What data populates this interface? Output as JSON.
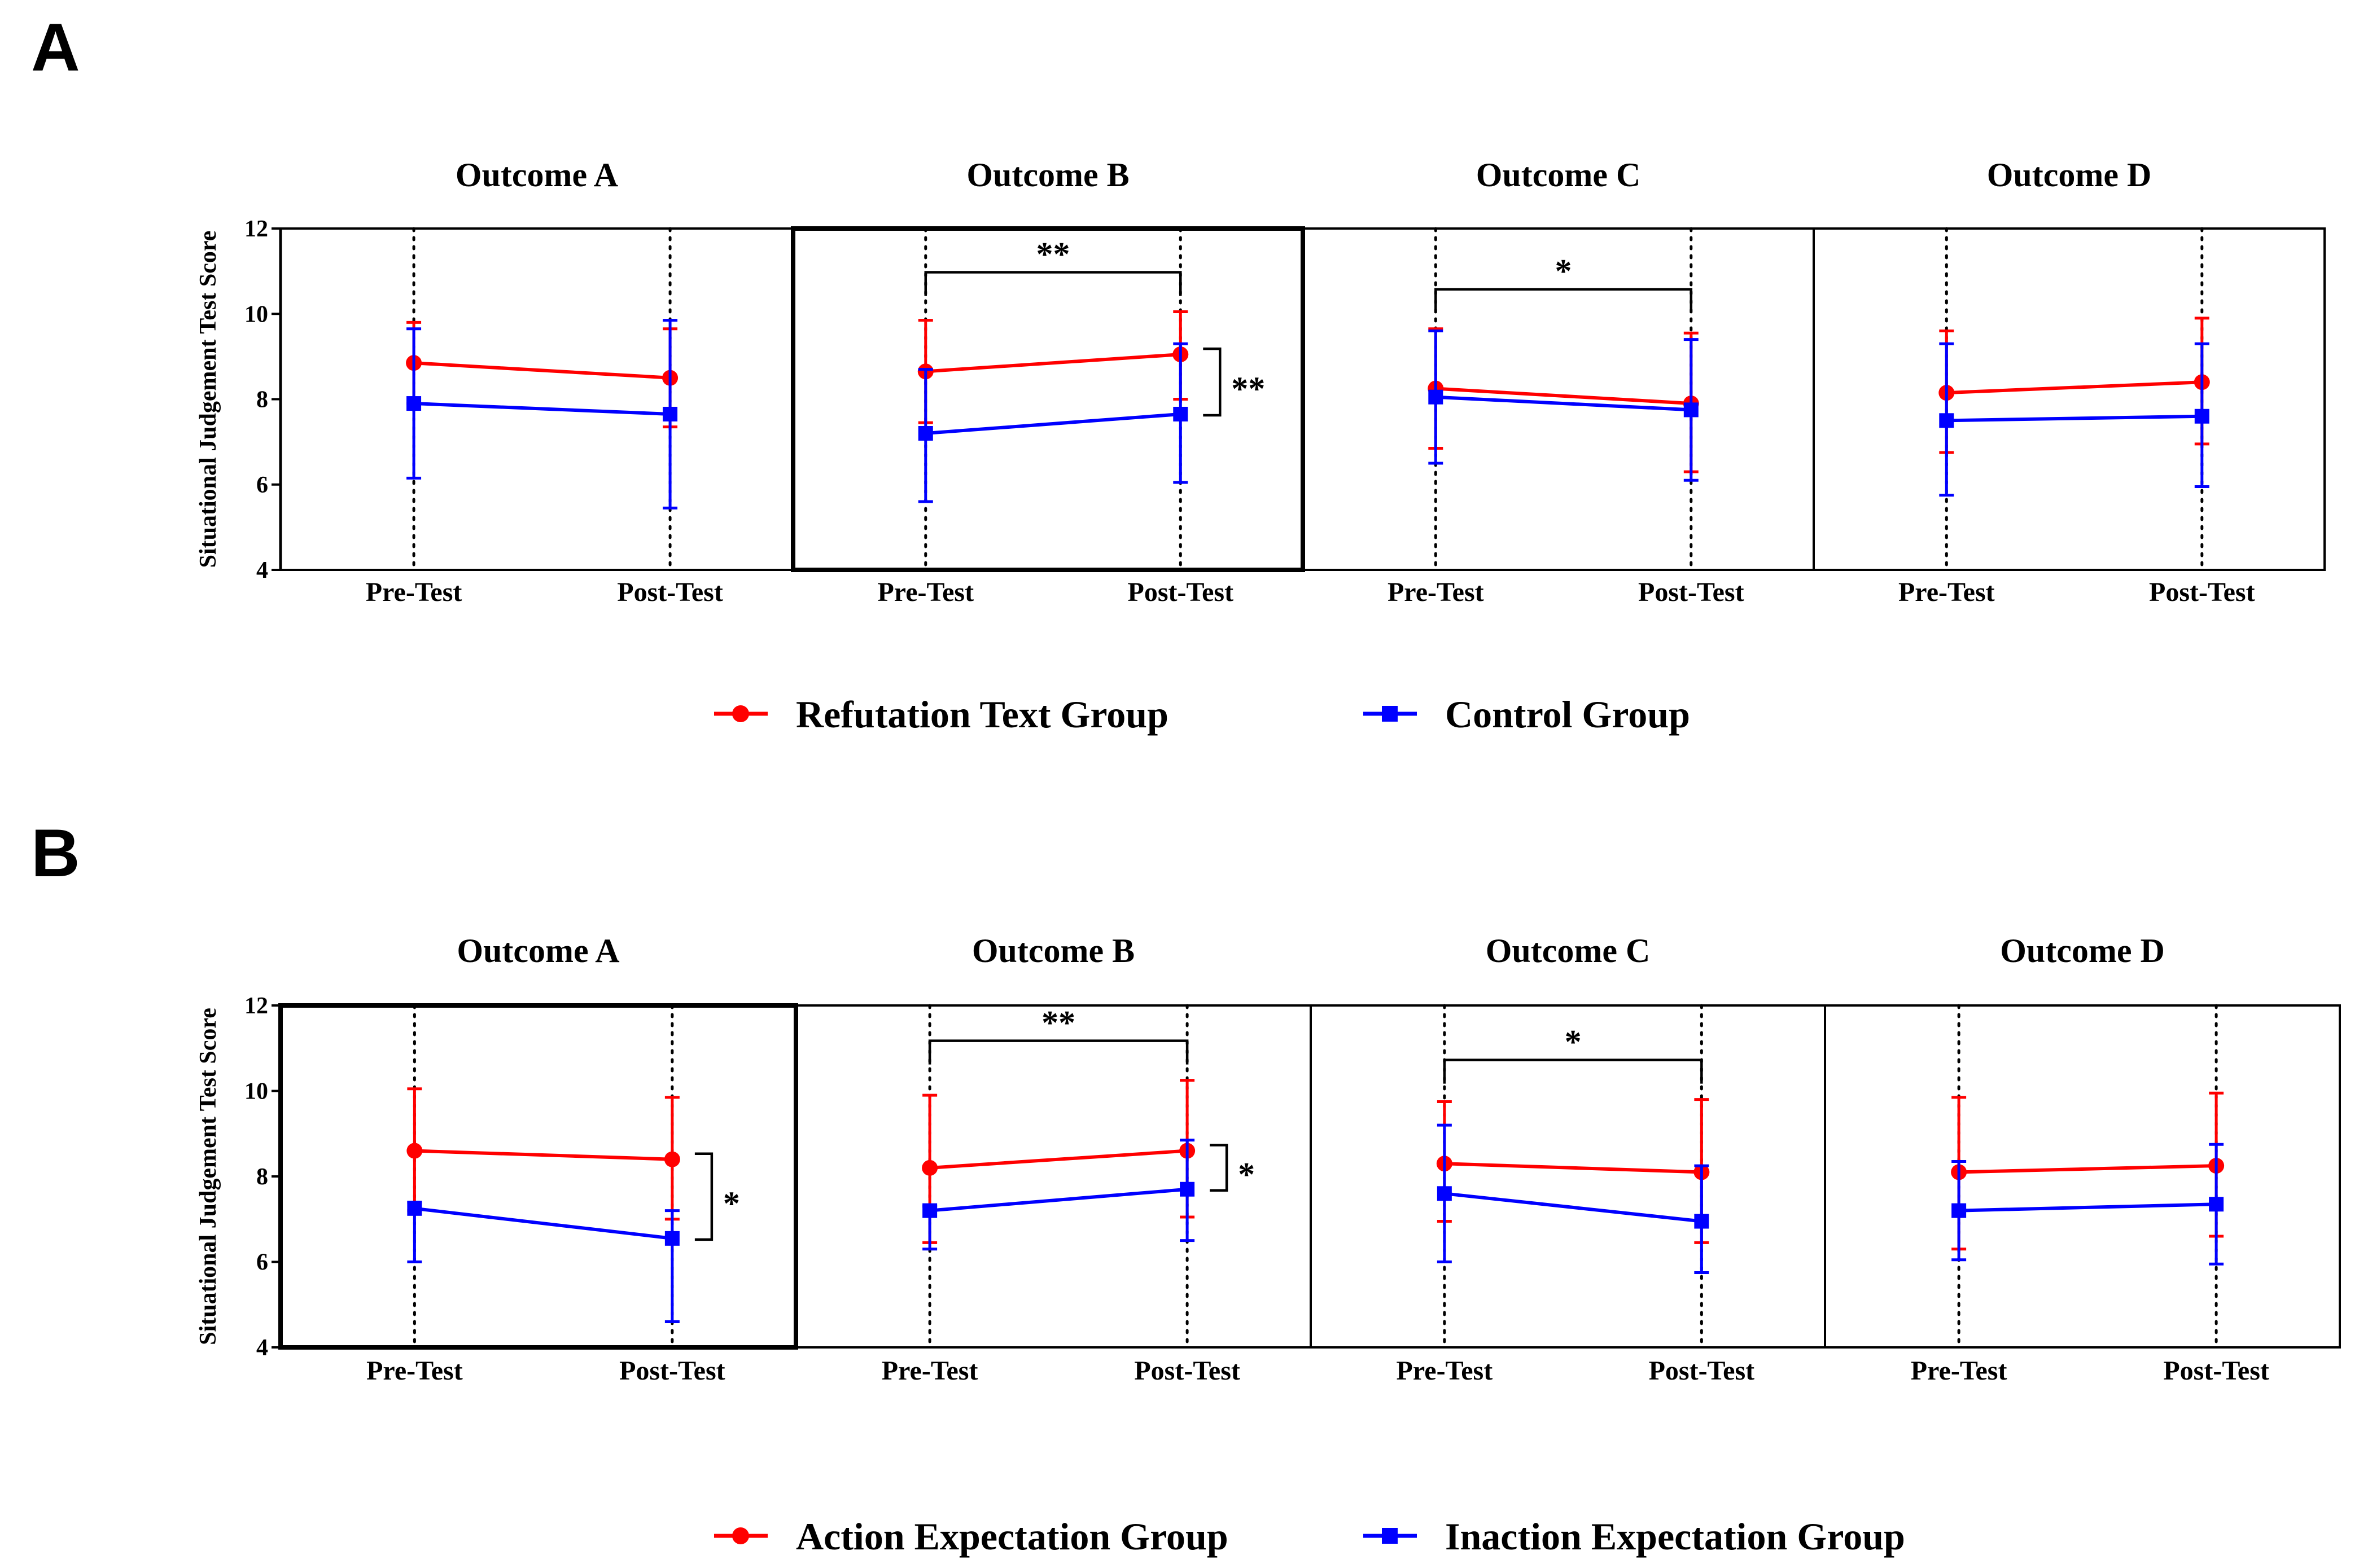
{
  "chart_data": [
    {
      "panel": "A",
      "type": "line",
      "ylabel": "Situational Judgement Test Score",
      "ylim": [
        4,
        12
      ],
      "yticks": [
        "4",
        "6",
        "8",
        "10",
        "12"
      ],
      "xcategories": [
        "Pre-Test",
        "Post-Test"
      ],
      "legend": [
        {
          "name": "Refutation Text Group",
          "color": "#ff0000",
          "marker": "circle"
        },
        {
          "name": "Control Group",
          "color": "#0000ff",
          "marker": "square"
        }
      ],
      "facets": [
        {
          "title": "Outcome A",
          "highlighted": false,
          "series": [
            {
              "values": [
                8.85,
                8.5
              ],
              "err_low": [
                7.9,
                7.35
              ],
              "err_high": [
                9.8,
                9.65
              ]
            },
            {
              "values": [
                7.9,
                7.65
              ],
              "err_low": [
                6.15,
                5.45
              ],
              "err_high": [
                9.65,
                9.85
              ]
            }
          ],
          "sig_time": "",
          "sig_group": ""
        },
        {
          "title": "Outcome B",
          "highlighted": true,
          "series": [
            {
              "values": [
                8.65,
                9.05
              ],
              "err_low": [
                7.45,
                8.0
              ],
              "err_high": [
                9.85,
                10.05
              ]
            },
            {
              "values": [
                7.2,
                7.65
              ],
              "err_low": [
                5.6,
                6.05
              ],
              "err_high": [
                8.7,
                9.3
              ]
            }
          ],
          "sig_time": "**",
          "sig_group": "**"
        },
        {
          "title": "Outcome C",
          "highlighted": false,
          "series": [
            {
              "values": [
                8.25,
                7.9
              ],
              "err_low": [
                6.85,
                6.3
              ],
              "err_high": [
                9.65,
                9.55
              ]
            },
            {
              "values": [
                8.05,
                7.75
              ],
              "err_low": [
                6.5,
                6.1
              ],
              "err_high": [
                9.6,
                9.4
              ]
            }
          ],
          "sig_time": "*",
          "sig_group": ""
        },
        {
          "title": "Outcome D",
          "highlighted": false,
          "series": [
            {
              "values": [
                8.15,
                8.4
              ],
              "err_low": [
                6.75,
                6.95
              ],
              "err_high": [
                9.6,
                9.9
              ]
            },
            {
              "values": [
                7.5,
                7.6
              ],
              "err_low": [
                5.75,
                5.95
              ],
              "err_high": [
                9.3,
                9.3
              ]
            }
          ],
          "sig_time": "",
          "sig_group": ""
        }
      ]
    },
    {
      "panel": "B",
      "type": "line",
      "ylabel": "Situational Judgement Test Score",
      "ylim": [
        4,
        12
      ],
      "yticks": [
        "4",
        "6",
        "8",
        "10",
        "12"
      ],
      "xcategories": [
        "Pre-Test",
        "Post-Test"
      ],
      "legend": [
        {
          "name": "Action Expectation Group",
          "color": "#ff0000",
          "marker": "circle"
        },
        {
          "name": "Inaction Expectation Group",
          "color": "#0000ff",
          "marker": "square"
        }
      ],
      "facets": [
        {
          "title": "Outcome A",
          "highlighted": true,
          "series": [
            {
              "values": [
                8.6,
                8.4
              ],
              "err_low": [
                7.2,
                7.0
              ],
              "err_high": [
                10.05,
                9.85
              ]
            },
            {
              "values": [
                7.25,
                6.55
              ],
              "err_low": [
                6.0,
                4.6
              ],
              "err_high": [
                7.4,
                7.2
              ]
            }
          ],
          "sig_time": "",
          "sig_group": "*"
        },
        {
          "title": "Outcome B",
          "highlighted": false,
          "series": [
            {
              "values": [
                8.2,
                8.6
              ],
              "err_low": [
                6.45,
                7.05
              ],
              "err_high": [
                9.9,
                10.25
              ]
            },
            {
              "values": [
                7.2,
                7.7
              ],
              "err_low": [
                6.3,
                6.5
              ],
              "err_high": [
                7.3,
                8.85
              ]
            }
          ],
          "sig_time": "**",
          "sig_group": "*"
        },
        {
          "title": "Outcome C",
          "highlighted": false,
          "series": [
            {
              "values": [
                8.3,
                8.1
              ],
              "err_low": [
                6.95,
                6.45
              ],
              "err_high": [
                9.75,
                9.8
              ]
            },
            {
              "values": [
                7.6,
                6.95
              ],
              "err_low": [
                6.0,
                5.75
              ],
              "err_high": [
                9.2,
                8.25
              ]
            }
          ],
          "sig_time": "*",
          "sig_group": ""
        },
        {
          "title": "Outcome D",
          "highlighted": false,
          "series": [
            {
              "values": [
                8.1,
                8.25
              ],
              "err_low": [
                6.3,
                6.6
              ],
              "err_high": [
                9.85,
                9.95
              ]
            },
            {
              "values": [
                7.2,
                7.35
              ],
              "err_low": [
                6.05,
                5.95
              ],
              "err_high": [
                8.35,
                8.75
              ]
            }
          ],
          "sig_time": "",
          "sig_group": ""
        }
      ]
    }
  ]
}
